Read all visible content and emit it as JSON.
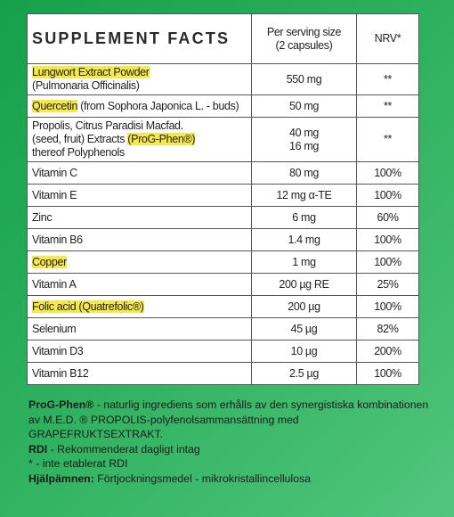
{
  "table": {
    "header": {
      "title": "SUPPLEMENT FACTS",
      "amount": [
        "Per serving size",
        "(2 capsules)"
      ],
      "nrv": "NRV*"
    },
    "rows": [
      {
        "name": [
          [
            {
              "text": "Lungwort Extract Powder",
              "highlight": true
            }
          ],
          [
            {
              "text": "(Pulmonaria Officinalis)",
              "highlight": false
            }
          ]
        ],
        "amount": [
          "550 mg"
        ],
        "nrv": "**"
      },
      {
        "name": [
          [
            {
              "text": "Quercetin",
              "highlight": true
            },
            {
              "text": " (from Sophora Japonica L. - buds)",
              "highlight": false
            }
          ]
        ],
        "amount": [
          "50 mg"
        ],
        "nrv": "**"
      },
      {
        "name": [
          [
            {
              "text": "Propolis, Citrus Paradisi Macfad.",
              "highlight": false
            }
          ],
          [
            {
              "text": "(seed, fruit) Extracts ",
              "highlight": false
            },
            {
              "text": "(ProG-Phen®)",
              "highlight": true
            }
          ],
          [
            {
              "text": "thereof Polyphenols",
              "highlight": false
            }
          ]
        ],
        "amount": [
          "40 mg",
          "16 mg"
        ],
        "nrv": "**"
      },
      {
        "name": [
          [
            {
              "text": "Vitamin C",
              "highlight": false
            }
          ]
        ],
        "amount": [
          "80 mg"
        ],
        "nrv": "100%"
      },
      {
        "name": [
          [
            {
              "text": "Vitamin E",
              "highlight": false
            }
          ]
        ],
        "amount": [
          "12 mg α-TE"
        ],
        "nrv": "100%"
      },
      {
        "name": [
          [
            {
              "text": "Zinc",
              "highlight": false
            }
          ]
        ],
        "amount": [
          "6 mg"
        ],
        "nrv": "60%"
      },
      {
        "name": [
          [
            {
              "text": "Vitamin B6",
              "highlight": false
            }
          ]
        ],
        "amount": [
          "1.4 mg"
        ],
        "nrv": "100%"
      },
      {
        "name": [
          [
            {
              "text": "Copper",
              "highlight": true
            }
          ]
        ],
        "amount": [
          "1 mg"
        ],
        "nrv": "100%"
      },
      {
        "name": [
          [
            {
              "text": "Vitamin A",
              "highlight": false
            }
          ]
        ],
        "amount": [
          "200 µg RE"
        ],
        "nrv": "25%"
      },
      {
        "name": [
          [
            {
              "text": "Folic acid (Quatrefolic®)",
              "highlight": true
            }
          ]
        ],
        "amount": [
          "200 µg"
        ],
        "nrv": "100%"
      },
      {
        "name": [
          [
            {
              "text": "Selenium",
              "highlight": false
            }
          ]
        ],
        "amount": [
          "45 µg"
        ],
        "nrv": "82%"
      },
      {
        "name": [
          [
            {
              "text": "Vitamin D3",
              "highlight": false
            }
          ]
        ],
        "amount": [
          "10 µg"
        ],
        "nrv": "200%"
      },
      {
        "name": [
          [
            {
              "text": "Vitamin B12",
              "highlight": false
            }
          ]
        ],
        "amount": [
          "2.5 µg"
        ],
        "nrv": "100%"
      }
    ]
  },
  "notes": [
    {
      "bold": "ProG-Phen®",
      "text": " - naturlig ingrediens som erhålls av den synergistiska kombinationen av M.E.D. ® PROPOLIS-polyfenolsammansättning med GRAPEFRUKTSEXTRAKT."
    },
    {
      "bold": "RDI",
      "text": " - Rekommenderat dagligt intag"
    },
    {
      "text": "* - inte etablerat RDI"
    },
    {
      "bold": "Hjälpämnen:",
      "text": " Förtjockningsmedel - mikrokristallincellulosa"
    }
  ]
}
